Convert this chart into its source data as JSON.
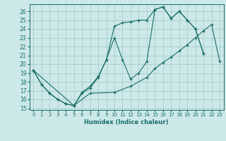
{
  "bg_color": "#cde8e8",
  "grid_color": "#9ec8c8",
  "line_color": "#1a6e6a",
  "xlim": [
    -0.5,
    23.5
  ],
  "ylim": [
    14.8,
    26.8
  ],
  "yticks": [
    15,
    16,
    17,
    18,
    19,
    20,
    21,
    22,
    23,
    24,
    25,
    26
  ],
  "xticks": [
    0,
    1,
    2,
    3,
    4,
    5,
    6,
    7,
    8,
    9,
    10,
    11,
    12,
    13,
    14,
    15,
    16,
    17,
    18,
    19,
    20,
    21,
    22,
    23
  ],
  "xlabel": "Humidex (Indice chaleur)",
  "curve1_x": [
    0,
    1,
    2,
    3,
    4,
    5,
    6,
    7,
    8,
    9,
    10,
    11,
    12,
    13,
    14,
    15,
    16,
    17,
    18,
    19,
    20,
    21
  ],
  "curve1_y": [
    19.3,
    17.7,
    16.7,
    16.0,
    15.5,
    15.3,
    16.8,
    17.5,
    18.6,
    20.5,
    24.3,
    24.7,
    24.8,
    25.0,
    25.0,
    26.2,
    26.5,
    25.2,
    26.0,
    25.0,
    24.0,
    21.2
  ],
  "curve2_x": [
    0,
    1,
    2,
    3,
    4,
    5,
    6,
    7,
    8,
    9,
    10,
    11,
    12,
    13,
    14,
    15,
    16,
    17,
    18,
    19,
    20,
    21
  ],
  "curve2_y": [
    19.3,
    17.7,
    16.7,
    16.0,
    15.5,
    15.3,
    16.7,
    17.3,
    18.5,
    20.5,
    23.0,
    20.5,
    18.3,
    19.0,
    20.3,
    26.2,
    26.5,
    25.2,
    26.0,
    25.0,
    24.0,
    21.2
  ],
  "curve3_x": [
    0,
    5,
    7,
    10,
    12,
    14,
    15,
    16,
    17,
    18,
    19,
    20,
    21,
    22,
    23
  ],
  "curve3_y": [
    19.3,
    15.3,
    16.7,
    16.8,
    17.5,
    18.5,
    19.5,
    20.2,
    20.8,
    21.5,
    22.2,
    23.0,
    23.8,
    24.5,
    20.3
  ]
}
